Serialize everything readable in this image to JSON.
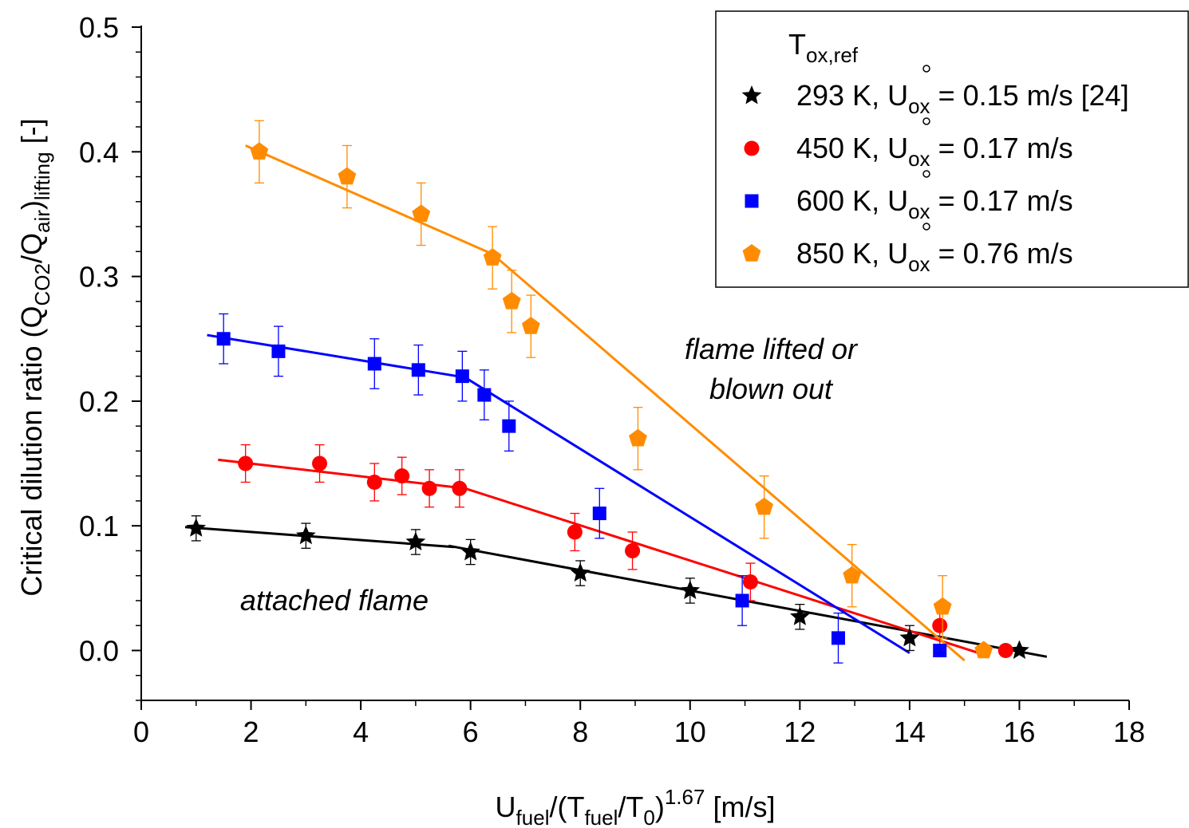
{
  "chart_data": {
    "type": "scatter",
    "xlabel": {
      "base": "U",
      "sub1": "fuel",
      "mid1": "/(T",
      "sub2": "fuel",
      "mid2": "/T",
      "sub3": "0",
      "mid3": ")",
      "sup": "1.67",
      "tail": " [m/s]"
    },
    "ylabel": {
      "pre": "Critical dilution ratio (Q",
      "sub1": "CO2",
      "mid": "/Q",
      "sub2": "air",
      "post": ")",
      "sub3": "lifting",
      "tail": " [-]"
    },
    "xlim": [
      0,
      18
    ],
    "ylim": [
      -0.04,
      0.5
    ],
    "xticks": [
      "0",
      "2",
      "4",
      "6",
      "8",
      "10",
      "12",
      "14",
      "16",
      "18"
    ],
    "yticks": [
      "0.0",
      "0.1",
      "0.2",
      "0.3",
      "0.4",
      "0.5"
    ],
    "legend": {
      "title_base": "T",
      "title_sub": "ox,ref",
      "position": "top-right"
    },
    "annotations": [
      {
        "line1": "flame lifted or",
        "line2": "blown out"
      },
      {
        "line1": "attached flame"
      }
    ],
    "series": [
      {
        "label": {
          "temp": "293 K, U",
          "sub": "ox",
          "tail": " = 0.15 m/s [24]"
        },
        "marker": "star",
        "color": "#000000",
        "points": [
          {
            "x": 1.0,
            "y": 0.098,
            "err": 0.01
          },
          {
            "x": 3.0,
            "y": 0.092,
            "err": 0.01
          },
          {
            "x": 5.0,
            "y": 0.087,
            "err": 0.01
          },
          {
            "x": 6.0,
            "y": 0.079,
            "err": 0.01
          },
          {
            "x": 8.0,
            "y": 0.062,
            "err": 0.01
          },
          {
            "x": 10.0,
            "y": 0.048,
            "err": 0.01
          },
          {
            "x": 12.0,
            "y": 0.027,
            "err": 0.01
          },
          {
            "x": 14.0,
            "y": 0.01,
            "err": 0.01
          },
          {
            "x": 16.0,
            "y": 0.0,
            "err": 0.0
          }
        ],
        "fits": [
          [
            [
              0.8,
              0.099
            ],
            [
              5.7,
              0.083
            ]
          ],
          [
            [
              5.6,
              0.084
            ],
            [
              16.5,
              -0.005
            ]
          ]
        ]
      },
      {
        "label": {
          "temp": "450 K, U",
          "sub": "ox",
          "tail": " = 0.17 m/s"
        },
        "marker": "circle",
        "color": "#ff0000",
        "points": [
          {
            "x": 1.9,
            "y": 0.15,
            "err": 0.015
          },
          {
            "x": 3.25,
            "y": 0.15,
            "err": 0.015
          },
          {
            "x": 4.25,
            "y": 0.135,
            "err": 0.015
          },
          {
            "x": 4.75,
            "y": 0.14,
            "err": 0.015
          },
          {
            "x": 5.25,
            "y": 0.13,
            "err": 0.015
          },
          {
            "x": 5.8,
            "y": 0.13,
            "err": 0.015
          },
          {
            "x": 7.9,
            "y": 0.095,
            "err": 0.015
          },
          {
            "x": 8.95,
            "y": 0.08,
            "err": 0.015
          },
          {
            "x": 11.1,
            "y": 0.055,
            "err": 0.015
          },
          {
            "x": 14.55,
            "y": 0.02,
            "err": 0.015
          },
          {
            "x": 15.75,
            "y": 0.0,
            "err": 0.0
          }
        ],
        "fits": [
          [
            [
              1.4,
              0.153
            ],
            [
              5.9,
              0.13
            ]
          ],
          [
            [
              5.9,
              0.13
            ],
            [
              15.4,
              -0.004
            ]
          ]
        ]
      },
      {
        "label": {
          "temp": "600 K, U",
          "sub": "ox",
          "tail": " = 0.17 m/s"
        },
        "marker": "square",
        "color": "#0000ff",
        "points": [
          {
            "x": 1.5,
            "y": 0.25,
            "err": 0.02
          },
          {
            "x": 2.5,
            "y": 0.24,
            "err": 0.02
          },
          {
            "x": 4.25,
            "y": 0.23,
            "err": 0.02
          },
          {
            "x": 5.05,
            "y": 0.225,
            "err": 0.02
          },
          {
            "x": 5.85,
            "y": 0.22,
            "err": 0.02
          },
          {
            "x": 6.25,
            "y": 0.205,
            "err": 0.02
          },
          {
            "x": 6.7,
            "y": 0.18,
            "err": 0.02
          },
          {
            "x": 8.35,
            "y": 0.11,
            "err": 0.02
          },
          {
            "x": 10.95,
            "y": 0.04,
            "err": 0.02
          },
          {
            "x": 12.7,
            "y": 0.01,
            "err": 0.02
          },
          {
            "x": 14.55,
            "y": 0.0,
            "err": 0.0
          }
        ],
        "fits": [
          [
            [
              1.2,
              0.253
            ],
            [
              5.9,
              0.219
            ]
          ],
          [
            [
              5.9,
              0.219
            ],
            [
              14.0,
              -0.002
            ]
          ]
        ]
      },
      {
        "label": {
          "temp": "850 K, U",
          "sub": "ox",
          "tail": " = 0.76 m/s"
        },
        "marker": "pentagon",
        "color": "#ff8c00",
        "points": [
          {
            "x": 2.15,
            "y": 0.4,
            "err": 0.025
          },
          {
            "x": 3.75,
            "y": 0.38,
            "err": 0.025
          },
          {
            "x": 5.1,
            "y": 0.35,
            "err": 0.025
          },
          {
            "x": 6.4,
            "y": 0.315,
            "err": 0.025
          },
          {
            "x": 6.75,
            "y": 0.28,
            "err": 0.025
          },
          {
            "x": 7.1,
            "y": 0.26,
            "err": 0.025
          },
          {
            "x": 9.05,
            "y": 0.17,
            "err": 0.025
          },
          {
            "x": 11.35,
            "y": 0.115,
            "err": 0.025
          },
          {
            "x": 12.95,
            "y": 0.06,
            "err": 0.025
          },
          {
            "x": 14.6,
            "y": 0.035,
            "err": 0.025
          },
          {
            "x": 15.35,
            "y": 0.0,
            "err": 0.0
          }
        ],
        "fits": [
          [
            [
              1.9,
              0.405
            ],
            [
              6.4,
              0.318
            ]
          ],
          [
            [
              6.4,
              0.318
            ],
            [
              15.0,
              -0.008
            ]
          ]
        ]
      }
    ]
  }
}
